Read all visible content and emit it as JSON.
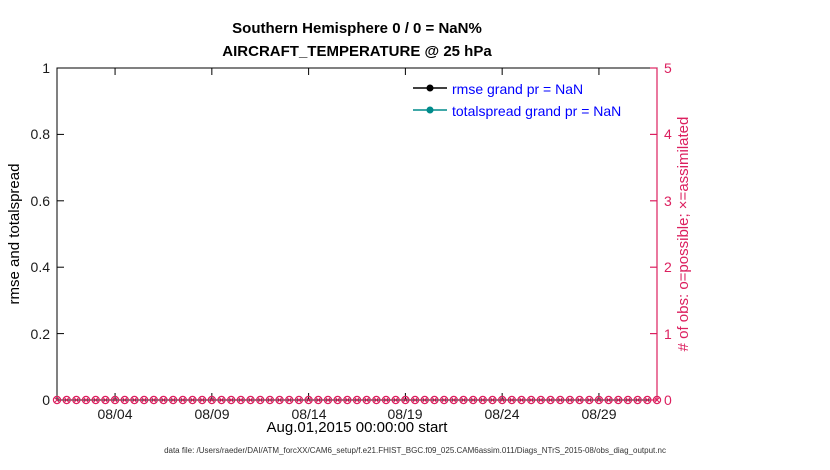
{
  "caption": "data file: /Users/raeder/DAI/ATM_forcXX/CAM6_setup/f.e21.FHIST_BGC.f09_025.CAM6assim.011/Diags_NTrS_2015-08/obs_diag_output.nc",
  "colors": {
    "obs_axis": "#dc205f",
    "legend_text": "#0000ff",
    "axis": "#000000",
    "rmse": "#000000",
    "totalspread": "#008b8b"
  },
  "chart_data": {
    "type": "line",
    "title": "Southern Hemisphere 0 / 0 = NaN%",
    "subtitle": "AIRCRAFT_TEMPERATURE @ 25 hPa",
    "xlabel": "Aug.01,2015 00:00:00 start",
    "ylabel_left": "rmse and totalspread",
    "ylabel_right": "# of obs: o=possible; ×=assimilated",
    "grid": false,
    "legend_position": "top-right-inside",
    "xlim_days": [
      1,
      32
    ],
    "x_tick_days": [
      4,
      9,
      14,
      19,
      24,
      29
    ],
    "x_tick_labels": [
      "08/04",
      "08/09",
      "08/14",
      "08/19",
      "08/24",
      "08/29"
    ],
    "ylim_left": [
      0,
      1
    ],
    "y_ticks_left": [
      0,
      0.2,
      0.4,
      0.6,
      0.8,
      1
    ],
    "ylim_right": [
      0,
      5
    ],
    "y_ticks_right": [
      0,
      1,
      2,
      3,
      4,
      5
    ],
    "series": [
      {
        "name": "rmse",
        "legend": "rmse grand pr = NaN",
        "color": "#000000",
        "axis": "left",
        "values_note": "all values NaN - no line drawn"
      },
      {
        "name": "totalspread",
        "legend": "totalspread grand pr = NaN",
        "color": "#008b8b",
        "axis": "left",
        "values_note": "all values NaN - no line drawn"
      },
      {
        "name": "possible-obs",
        "marker": "o",
        "axis": "right",
        "color": "#dc205f",
        "constant_value": 0,
        "start_day": 1,
        "end_day": 32,
        "step_days": 0.5
      },
      {
        "name": "assimilated-obs",
        "marker": "x",
        "axis": "right",
        "color": "#dc205f",
        "constant_value": 0,
        "start_day": 1,
        "end_day": 32,
        "step_days": 0.5
      }
    ]
  }
}
